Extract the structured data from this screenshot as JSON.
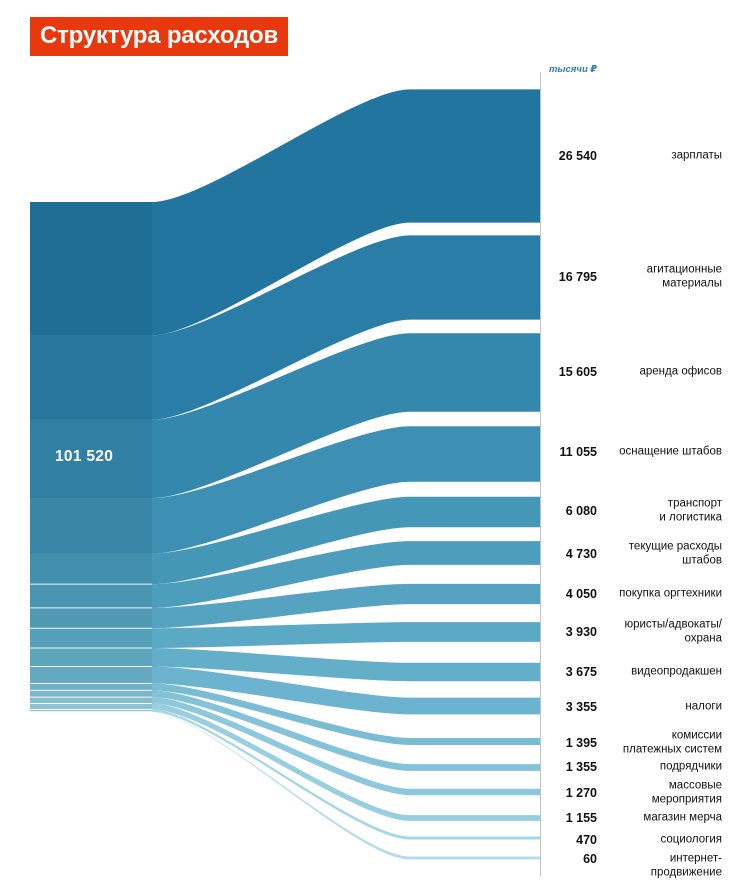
{
  "title": "Структура расходов",
  "units_label": "тысячи ₽",
  "accent_color": "#E8380D",
  "chart_data": {
    "type": "sankey",
    "title": "Структура расходов",
    "units": "тысячи ₽",
    "total": {
      "value": 101520,
      "value_text": "101 520"
    },
    "legend_position": "right",
    "items": [
      {
        "label": "зарплаты",
        "value": 26540,
        "value_text": "26 540",
        "color": "#21759F"
      },
      {
        "label": "агитационные\nматериалы",
        "value": 16795,
        "value_text": "16 795",
        "color": "#2A7DA6"
      },
      {
        "label": "аренда офисов",
        "value": 15605,
        "value_text": "15 605",
        "color": "#3487AD"
      },
      {
        "label": "оснащение штабов",
        "value": 11055,
        "value_text": "11 055",
        "color": "#3D8FB3"
      },
      {
        "label": "транспорт\nи логистика",
        "value": 6080,
        "value_text": "6 080",
        "color": "#4597B8"
      },
      {
        "label": "текущие расходы\nштабов",
        "value": 4730,
        "value_text": "4 730",
        "color": "#4D9DBC"
      },
      {
        "label": "покупка оргтехники",
        "value": 4050,
        "value_text": "4 050",
        "color": "#55A3C1"
      },
      {
        "label": "юристы/адвокаты/\nохрана",
        "value": 3930,
        "value_text": "3 930",
        "color": "#5CA9C5"
      },
      {
        "label": "видеопродакшен",
        "value": 3675,
        "value_text": "3 675",
        "color": "#63AEC9"
      },
      {
        "label": "налоги",
        "value": 3355,
        "value_text": "3 355",
        "color": "#6BB3CE"
      },
      {
        "label": "комиссии\nплатежных систем",
        "value": 1395,
        "value_text": "1 395",
        "color": "#79BCD4"
      },
      {
        "label": "подрядчики",
        "value": 1355,
        "value_text": "1 355",
        "color": "#83C2D8"
      },
      {
        "label": "массовые\nмероприятия",
        "value": 1270,
        "value_text": "1 270",
        "color": "#8DC8DC"
      },
      {
        "label": "магазин мерча",
        "value": 1155,
        "value_text": "1 155",
        "color": "#97CEE0"
      },
      {
        "label": "социология",
        "value": 470,
        "value_text": "470",
        "color": "#A5D6E6"
      },
      {
        "label": "интернет-\nпродвижение",
        "value": 60,
        "value_text": "60",
        "color": "#B3DCEA"
      }
    ]
  }
}
